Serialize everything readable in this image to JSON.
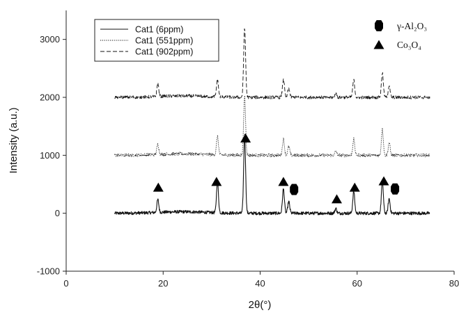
{
  "chart_data": {
    "type": "line",
    "title": "",
    "xlabel": "2θ(°)",
    "ylabel": "Intensity (a.u.)",
    "xlim": [
      0,
      80
    ],
    "ylim": [
      -1000,
      3500
    ],
    "xticks": [
      "0",
      "20",
      "40",
      "60",
      "80"
    ],
    "yticks": [
      "-1000",
      "0",
      "1000",
      "2000",
      "3000"
    ],
    "grid": false,
    "legend_position": "top-left",
    "series": [
      {
        "name": "Cat1 (6ppm)",
        "line_style": "solid",
        "baseline": 0,
        "x_range": [
          10,
          75
        ],
        "peaks": [
          [
            18.9,
            220
          ],
          [
            31.2,
            550
          ],
          [
            36.8,
            1350
          ],
          [
            44.8,
            420
          ],
          [
            45.9,
            200
          ],
          [
            55.6,
            80
          ],
          [
            59.3,
            380
          ],
          [
            65.2,
            560
          ],
          [
            66.6,
            250
          ]
        ]
      },
      {
        "name": "Cat1 (551ppm)",
        "line_style": "dotted",
        "baseline": 1000,
        "x_range": [
          10,
          75
        ],
        "peaks": [
          [
            18.9,
            180
          ],
          [
            31.2,
            320
          ],
          [
            36.8,
            1020
          ],
          [
            44.8,
            280
          ],
          [
            45.9,
            150
          ],
          [
            55.6,
            70
          ],
          [
            59.3,
            280
          ],
          [
            65.2,
            450
          ],
          [
            66.6,
            220
          ]
        ]
      },
      {
        "name": "Cat1 (902ppm)",
        "line_style": "dashed",
        "baseline": 2000,
        "x_range": [
          10,
          75
        ],
        "peaks": [
          [
            18.9,
            220
          ],
          [
            31.2,
            300
          ],
          [
            36.8,
            1200
          ],
          [
            44.8,
            320
          ],
          [
            45.9,
            160
          ],
          [
            55.6,
            60
          ],
          [
            59.3,
            300
          ],
          [
            65.2,
            420
          ],
          [
            66.6,
            200
          ]
        ]
      }
    ],
    "markers": [
      {
        "symbol": "triangle",
        "x": 19,
        "y": 450
      },
      {
        "symbol": "triangle",
        "x": 31,
        "y": 550
      },
      {
        "symbol": "triangle",
        "x": 37,
        "y": 1300
      },
      {
        "symbol": "triangle",
        "x": 44.8,
        "y": 550
      },
      {
        "symbol": "hexagon",
        "x": 47,
        "y": 410
      },
      {
        "symbol": "triangle",
        "x": 55.8,
        "y": 250
      },
      {
        "symbol": "triangle",
        "x": 59.5,
        "y": 450
      },
      {
        "symbol": "triangle",
        "x": 65.5,
        "y": 560
      },
      {
        "symbol": "hexagon",
        "x": 67.8,
        "y": 420
      }
    ],
    "marker_legend": [
      {
        "symbol": "hexagon",
        "label": "γ-Al₂O₃"
      },
      {
        "symbol": "triangle",
        "label": "Co₃O₄"
      }
    ]
  }
}
